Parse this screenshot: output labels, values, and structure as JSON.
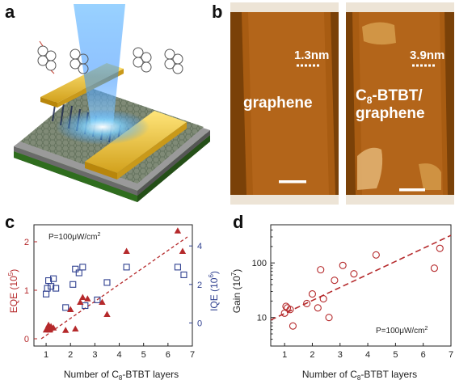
{
  "panel_letters": {
    "a": "a",
    "b": "b",
    "c": "c",
    "d": "d"
  },
  "panel_b": {
    "left_scale": "1.3nm",
    "right_scale": "3.9nm",
    "left_label": "graphene",
    "right_label_line1_prefix": "C",
    "right_label_line1_sub": "8",
    "right_label_line1_suffix": "-BTBT/",
    "right_label_line2": "graphene"
  },
  "chart_data": [
    {
      "type": "scatter",
      "panel": "c",
      "annotation_main": "P=100μW/cm",
      "annotation_sup": "2",
      "xlabel_prefix": "Number of C",
      "xlabel_sub": "8",
      "xlabel_suffix": "-BTBT layers",
      "ylabel_left_main": "EQE (10",
      "ylabel_left_sup": "5",
      "ylabel_left_end": ")",
      "ylabel_right_main": "IQE (10",
      "ylabel_right_sup": "6",
      "ylabel_right_end": ")",
      "xlim": [
        0.5,
        7
      ],
      "ylim_left": [
        -0.15,
        2.35
      ],
      "ylim_right": [
        -1.2,
        5.1
      ],
      "x_ticks": [
        "1",
        "2",
        "3",
        "4",
        "5",
        "6",
        "7"
      ],
      "y_left_ticks": [
        "0",
        "1",
        "2"
      ],
      "y_right_ticks": [
        "0",
        "2",
        "4"
      ],
      "colors": {
        "eqe": "#b5292b",
        "iqe": "#2e3f8f"
      },
      "series": [
        {
          "name": "EQE",
          "axis": "left",
          "marker": "filled-triangle",
          "x": [
            1.0,
            1.05,
            1.1,
            1.15,
            1.2,
            1.3,
            1.8,
            2.0,
            2.2,
            2.4,
            2.5,
            2.7,
            3.3,
            3.5,
            4.3,
            6.4,
            6.6
          ],
          "y": [
            0.18,
            0.22,
            0.28,
            0.18,
            0.25,
            0.22,
            0.17,
            0.6,
            0.2,
            0.75,
            0.85,
            0.82,
            0.75,
            0.5,
            1.8,
            2.22,
            1.8
          ]
        },
        {
          "name": "IQE",
          "axis": "right",
          "marker": "open-square",
          "x": [
            1.0,
            1.05,
            1.1,
            1.2,
            1.3,
            1.4,
            1.8,
            2.1,
            2.2,
            2.35,
            2.5,
            2.6,
            3.1,
            3.5,
            4.3,
            6.4,
            6.65
          ],
          "y": [
            1.5,
            1.8,
            2.2,
            1.9,
            2.3,
            1.8,
            0.8,
            2.0,
            2.8,
            2.6,
            2.9,
            0.9,
            1.2,
            2.1,
            2.9,
            2.9,
            2.5
          ]
        }
      ],
      "fit": {
        "x": [
          0.8,
          6.8
        ],
        "y": [
          0.0,
          2.1
        ]
      }
    },
    {
      "type": "scatter",
      "panel": "d",
      "annotation_main": "P=100μW/cm",
      "annotation_sup": "2",
      "xlabel_prefix": "Number of C",
      "xlabel_sub": "8",
      "xlabel_suffix": "-BTBT layers",
      "ylabel_main": "Gain (10",
      "ylabel_sup": "7",
      "ylabel_end": ")",
      "xlim": [
        0.5,
        7
      ],
      "ylim_log": [
        3,
        500
      ],
      "log_y": true,
      "x_ticks": [
        "1",
        "2",
        "3",
        "4",
        "5",
        "6",
        "7"
      ],
      "y_ticks": [
        {
          "value": 10,
          "label": "10"
        },
        {
          "value": 100,
          "label": "100"
        }
      ],
      "color": "#b5292b",
      "series": [
        {
          "marker": "open-circle",
          "x": [
            1.0,
            1.05,
            1.1,
            1.2,
            1.3,
            1.8,
            2.0,
            2.2,
            2.3,
            2.4,
            2.6,
            2.8,
            3.1,
            3.5,
            4.3,
            6.4,
            6.6
          ],
          "y": [
            12,
            16,
            15,
            14,
            7,
            18,
            27,
            15,
            75,
            22,
            10,
            48,
            90,
            63,
            140,
            80,
            185
          ]
        }
      ],
      "fit": {
        "x": [
          0.5,
          7
        ],
        "y": [
          9,
          320
        ]
      }
    }
  ]
}
